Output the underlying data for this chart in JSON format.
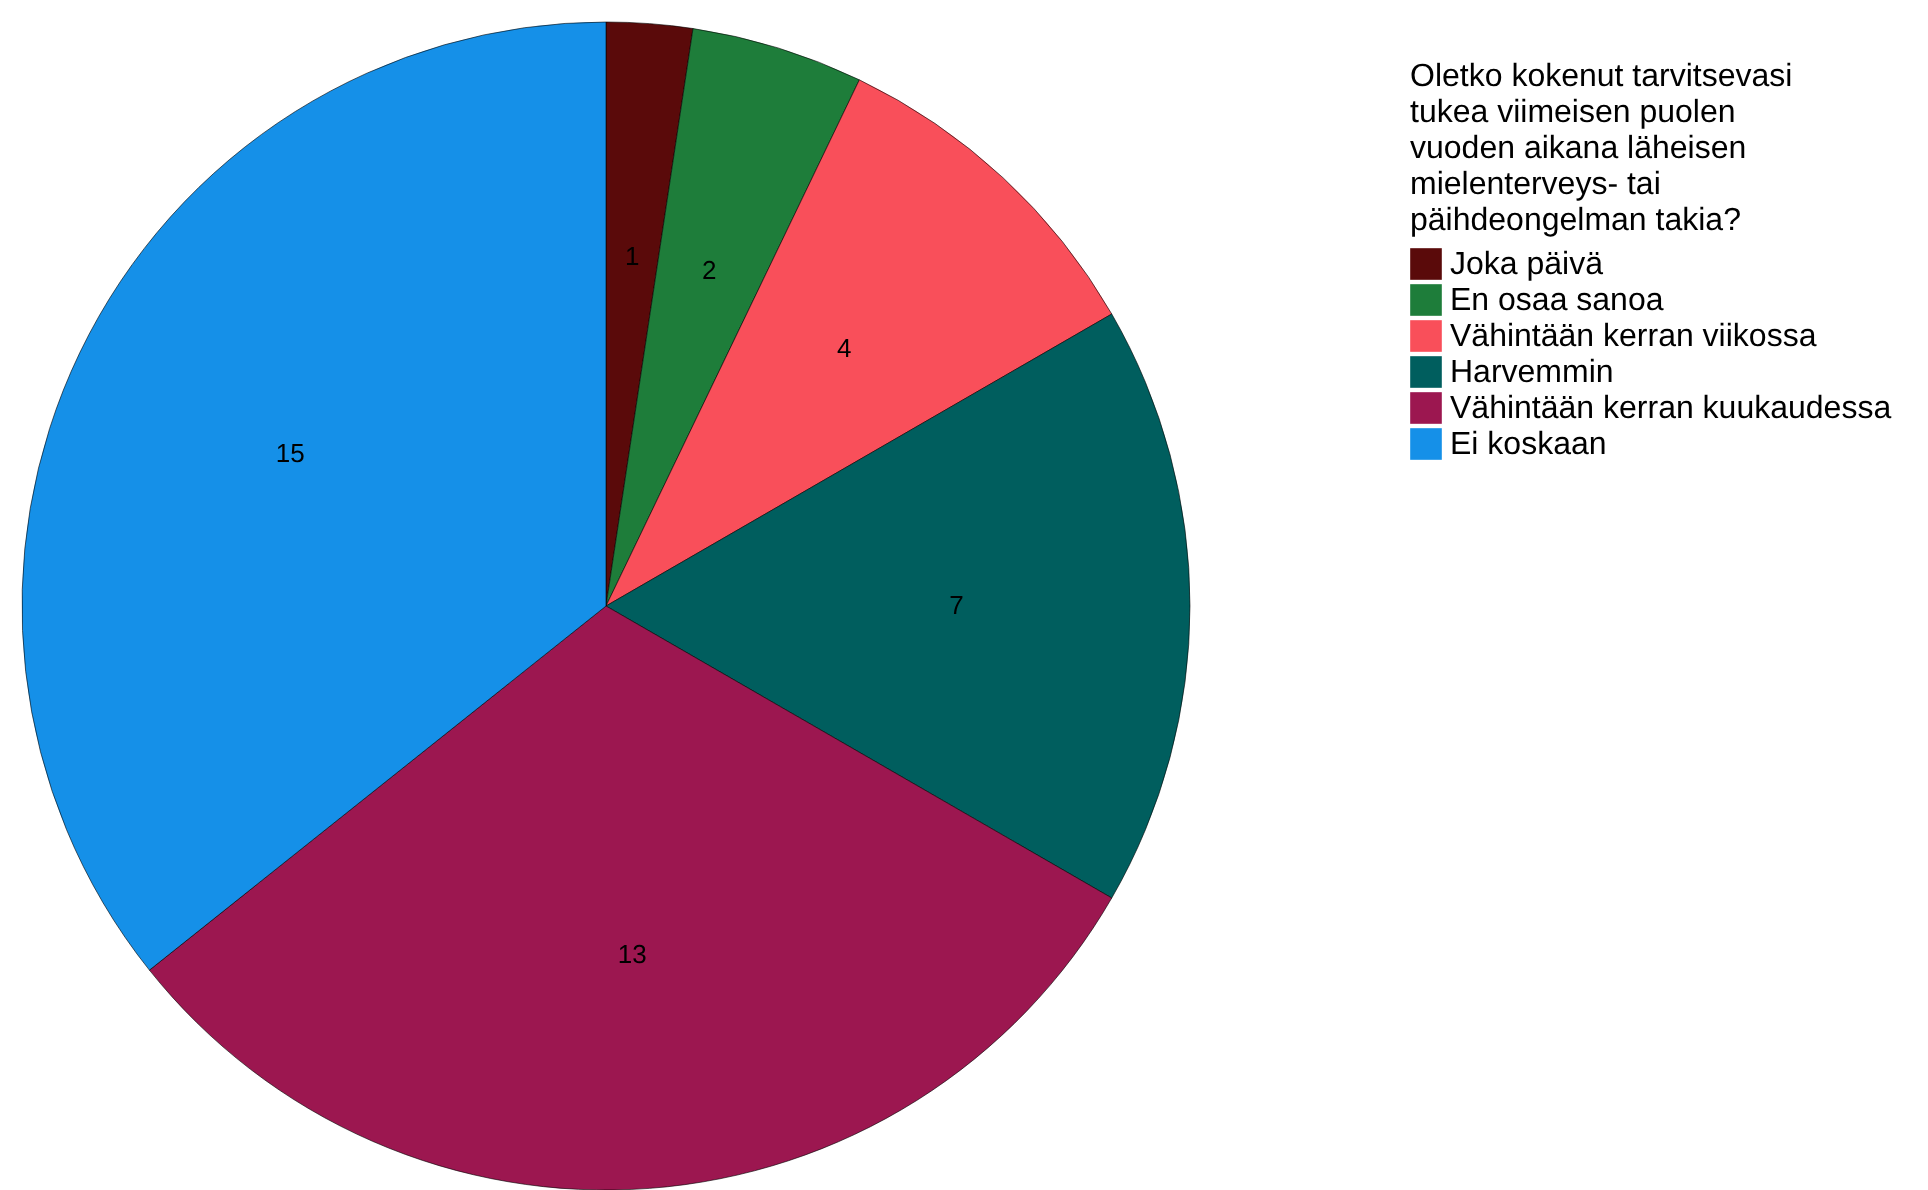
{
  "chart_data": {
    "type": "pie",
    "legend_title": "Oletko kokenut tarvitsevasi tukea viimeisen puolen vuoden aikana läheisen mielenterveys- tai päihdeongelman takia?",
    "categories": [
      "Joka päivä",
      "En osaa sanoa",
      "Vähintään kerran viikossa",
      "Harvemmin",
      "Vähintään kerran kuukaudessa",
      "Ei koskaan"
    ],
    "values": [
      1,
      2,
      4,
      7,
      13,
      15
    ],
    "colors": [
      "#5a0a0a",
      "#1e7d3a",
      "#f94f5a",
      "#005e5e",
      "#9c1750",
      "#1590e8"
    ],
    "data_labels": true,
    "legend": "right"
  }
}
